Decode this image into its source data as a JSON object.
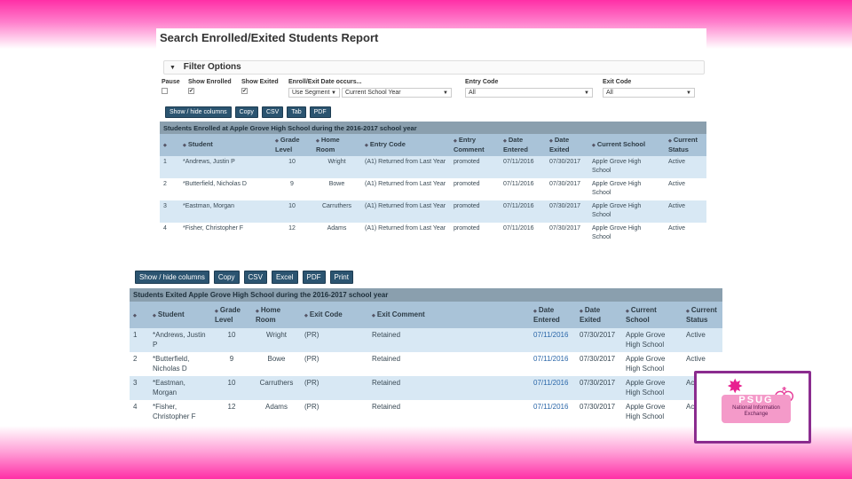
{
  "report": {
    "title": "Search Enrolled/Exited Students Report"
  },
  "filter": {
    "header": "Filter Options",
    "labels": {
      "pause": "Pause",
      "show_enrolled": "Show Enrolled",
      "show_exited": "Show Exited",
      "date_occurs": "Enroll/Exit Date occurs...",
      "entry_code": "Entry Code",
      "exit_code": "Exit Code"
    },
    "values": {
      "date_mode": "Use Segment",
      "date_range": "Current School Year",
      "entry_code": "All",
      "exit_code": "All"
    }
  },
  "buttons_top": [
    "Show / hide columns",
    "Copy",
    "CSV",
    "Tab",
    "PDF"
  ],
  "buttons_bottom": [
    "Show / hide columns",
    "Copy",
    "CSV",
    "Excel",
    "PDF",
    "Print"
  ],
  "enrolled": {
    "caption": "Students Enrolled at Apple Grove High School during the 2016-2017 school year",
    "headers": [
      "",
      "Student",
      "Grade Level",
      "Home Room",
      "Entry Code",
      "Entry Comment",
      "Date Entered",
      "Date Exited",
      "Current School",
      "Current Status"
    ],
    "rows": [
      [
        "1",
        "*Andrews, Justin P",
        "10",
        "Wright",
        "(A1) Returned from Last Year",
        "promoted",
        "07/11/2016",
        "07/30/2017",
        "Apple Grove High School",
        "Active"
      ],
      [
        "2",
        "*Butterfield, Nicholas D",
        "9",
        "Bowe",
        "(A1) Returned from Last Year",
        "promoted",
        "07/11/2016",
        "07/30/2017",
        "Apple Grove High School",
        "Active"
      ],
      [
        "3",
        "*Eastman, Morgan",
        "10",
        "Carruthers",
        "(A1) Returned from Last Year",
        "promoted",
        "07/11/2016",
        "07/30/2017",
        "Apple Grove High School",
        "Active"
      ],
      [
        "4",
        "*Fisher, Christopher F",
        "12",
        "Adams",
        "(A1) Returned from Last Year",
        "promoted",
        "07/11/2016",
        "07/30/2017",
        "Apple Grove High School",
        "Active"
      ]
    ]
  },
  "exited": {
    "caption": "Students Exited Apple Grove High School during the 2016-2017 school year",
    "headers": [
      "",
      "Student",
      "Grade Level",
      "Home Room",
      "Exit Code",
      "Exit Comment",
      "Date Entered",
      "Date Exited",
      "Current School",
      "Current Status"
    ],
    "rows": [
      [
        "1",
        "*Andrews, Justin P",
        "10",
        "Wright",
        "(PR)",
        "Retained",
        "07/11/2016",
        "07/30/2017",
        "Apple Grove High School",
        "Active"
      ],
      [
        "2",
        "*Butterfield, Nicholas D",
        "9",
        "Bowe",
        "(PR)",
        "Retained",
        "07/11/2016",
        "07/30/2017",
        "Apple Grove High School",
        "Active"
      ],
      [
        "3",
        "*Eastman, Morgan",
        "10",
        "Carruthers",
        "(PR)",
        "Retained",
        "07/11/2016",
        "07/30/2017",
        "Apple Grove High School",
        "Active"
      ],
      [
        "4",
        "*Fisher, Christopher F",
        "12",
        "Adams",
        "(PR)",
        "Retained",
        "07/11/2016",
        "07/30/2017",
        "Apple Grove High School",
        "Active"
      ]
    ]
  },
  "logo": {
    "acronym": "PSUG",
    "tagline": "National Information Exchange"
  },
  "icons": {
    "sort": "sort-arrows-icon",
    "caret": "caret-down-icon",
    "star": "star-icon",
    "flamingo": "flamingo-icon"
  }
}
